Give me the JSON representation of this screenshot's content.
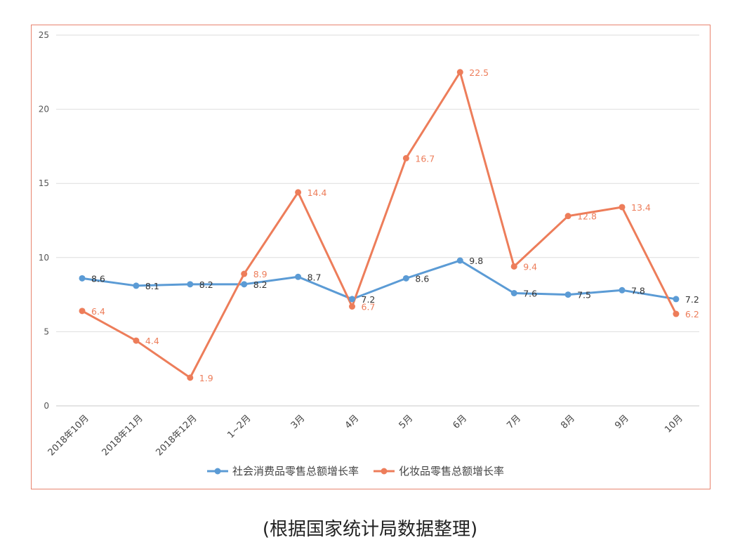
{
  "chart_data": {
    "type": "line",
    "categories": [
      "2018年10月",
      "2018年11月",
      "2018年12月",
      "1~2月",
      "3月",
      "4月",
      "5月",
      "6月",
      "7月",
      "8月",
      "9月",
      "10月"
    ],
    "series": [
      {
        "name": "社会消费品零售总额增长率",
        "color": "#5b9bd5",
        "label_color": "#333333",
        "values": [
          8.6,
          8.1,
          8.2,
          8.2,
          8.7,
          7.2,
          8.6,
          9.8,
          7.6,
          7.5,
          7.8,
          7.2
        ]
      },
      {
        "name": "化妆品零售总额增长率",
        "color": "#ed7d5a",
        "label_color": "#ed7d5a",
        "values": [
          6.4,
          4.4,
          1.9,
          8.9,
          14.4,
          6.7,
          16.7,
          22.5,
          9.4,
          12.8,
          13.4,
          6.2
        ]
      }
    ],
    "yticks": [
      "0",
      "5",
      "10",
      "15",
      "20",
      "25"
    ],
    "ylim": [
      0,
      25
    ],
    "grid": true,
    "legend_position": "bottom",
    "title": "",
    "xlabel": "",
    "ylabel": ""
  },
  "caption": "(根据国家统计局数据整理)"
}
